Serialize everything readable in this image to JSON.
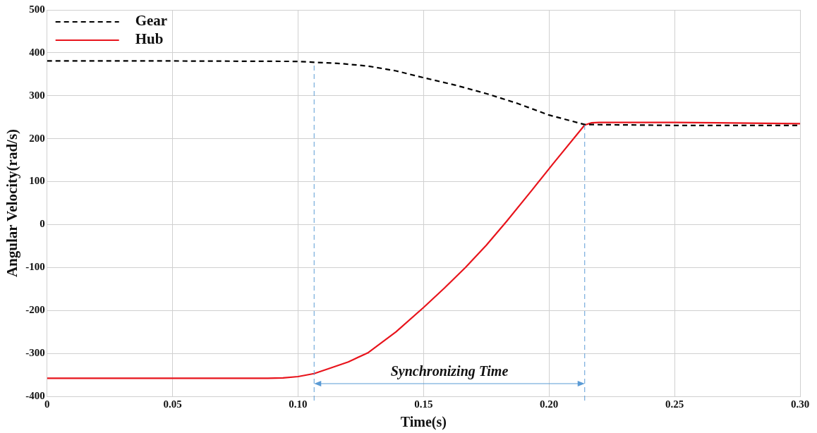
{
  "chart_data": {
    "type": "line",
    "xlabel": "Time(s)",
    "ylabel": "Angular Velocity(rad/s)",
    "xlim": [
      0,
      0.3
    ],
    "xticks": [
      0,
      0.05,
      {
        "value": 0.1,
        "label": "0.10"
      },
      0.15,
      {
        "value": 0.2,
        "label": "0.20"
      },
      0.25,
      {
        "value": 0.3,
        "label": "0.30"
      }
    ],
    "ylim": [
      -400,
      500
    ],
    "yticks": [
      500,
      400,
      300,
      200,
      100,
      0,
      -100,
      -200,
      -300,
      -400
    ],
    "grid": true,
    "legend": "top left",
    "marker": "none",
    "series": [
      {
        "name": "Gear",
        "color": "#000000",
        "line_style": "dashed",
        "x": [
          0,
          0.05,
          0.1,
          0.1064,
          0.117,
          0.128,
          0.139,
          0.15,
          0.1625,
          0.175,
          0.1875,
          0.2,
          0.2142,
          0.25,
          0.3
        ],
        "values": [
          381,
          381,
          380,
          378,
          375,
          369,
          358,
          342,
          325,
          305,
          282,
          255,
          233,
          231,
          231
        ]
      },
      {
        "name": "Hub",
        "color": "#e8141c",
        "line_style": "solid",
        "x": [
          0,
          0.05,
          0.088,
          0.094,
          0.1,
          0.1064,
          0.112,
          0.12,
          0.128,
          0.139,
          0.15,
          0.1583,
          0.1667,
          0.175,
          0.183,
          0.1933,
          0.2015,
          0.2142,
          0.217,
          0.22,
          0.25,
          0.3
        ],
        "values": [
          -358,
          -358,
          -358,
          -357,
          -354,
          -347,
          -336,
          -320,
          -298,
          -250,
          -193,
          -148,
          -100,
          -48,
          7,
          81,
          141,
          232,
          237,
          238,
          238,
          235
        ]
      }
    ],
    "ref_lines": [
      {
        "axis": "x",
        "value": 0.1064,
        "color": "#5b9bd5",
        "line_style": "dashed"
      },
      {
        "axis": "x",
        "value": 0.2142,
        "color": "#5b9bd5",
        "line_style": "dashed"
      }
    ],
    "annotations": [
      "Synchronizing Time"
    ]
  }
}
